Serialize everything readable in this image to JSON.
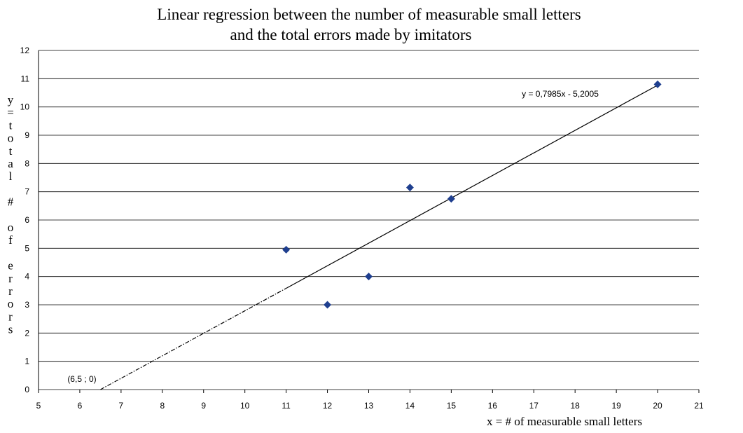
{
  "chart_data": {
    "type": "scatter",
    "title_line1": "Linear regression  between the number of measurable small letters",
    "title_line2": "and the total errors made by imitators",
    "xlabel": "x  = # of measurable small letters",
    "ylabel_chars": [
      "y",
      "=",
      "t",
      "o",
      "t",
      "a",
      "l",
      "",
      "#",
      "",
      "o",
      "f",
      "",
      "e",
      "r",
      "r",
      "o",
      "r",
      "s"
    ],
    "xlim": [
      5,
      21
    ],
    "ylim": [
      0,
      12
    ],
    "x_ticks": [
      "5",
      "6",
      "7",
      "8",
      "9",
      "10",
      "11",
      "12",
      "13",
      "14",
      "15",
      "16",
      "17",
      "18",
      "19",
      "20",
      "21"
    ],
    "y_ticks": [
      "0",
      "1",
      "2",
      "3",
      "4",
      "5",
      "6",
      "7",
      "8",
      "9",
      "10",
      "11",
      "12"
    ],
    "grid": "horizontal",
    "marker_color": "#1f3f8f",
    "points": [
      {
        "x": 11,
        "y": 4.95
      },
      {
        "x": 12,
        "y": 3.0
      },
      {
        "x": 13,
        "y": 4.0
      },
      {
        "x": 14,
        "y": 7.15
      },
      {
        "x": 15,
        "y": 6.75
      },
      {
        "x": 20,
        "y": 10.8
      }
    ],
    "trendline": {
      "equation": "y = 0,7985x  - 5,2005",
      "slope": 0.7985,
      "intercept": -5.2005,
      "solid_from_x": 11,
      "solid_to_x": 20,
      "dashed_from_x": 6.5,
      "dashed_to_x": 11
    },
    "annotation_intercept": "(6,5 ; 0)"
  }
}
